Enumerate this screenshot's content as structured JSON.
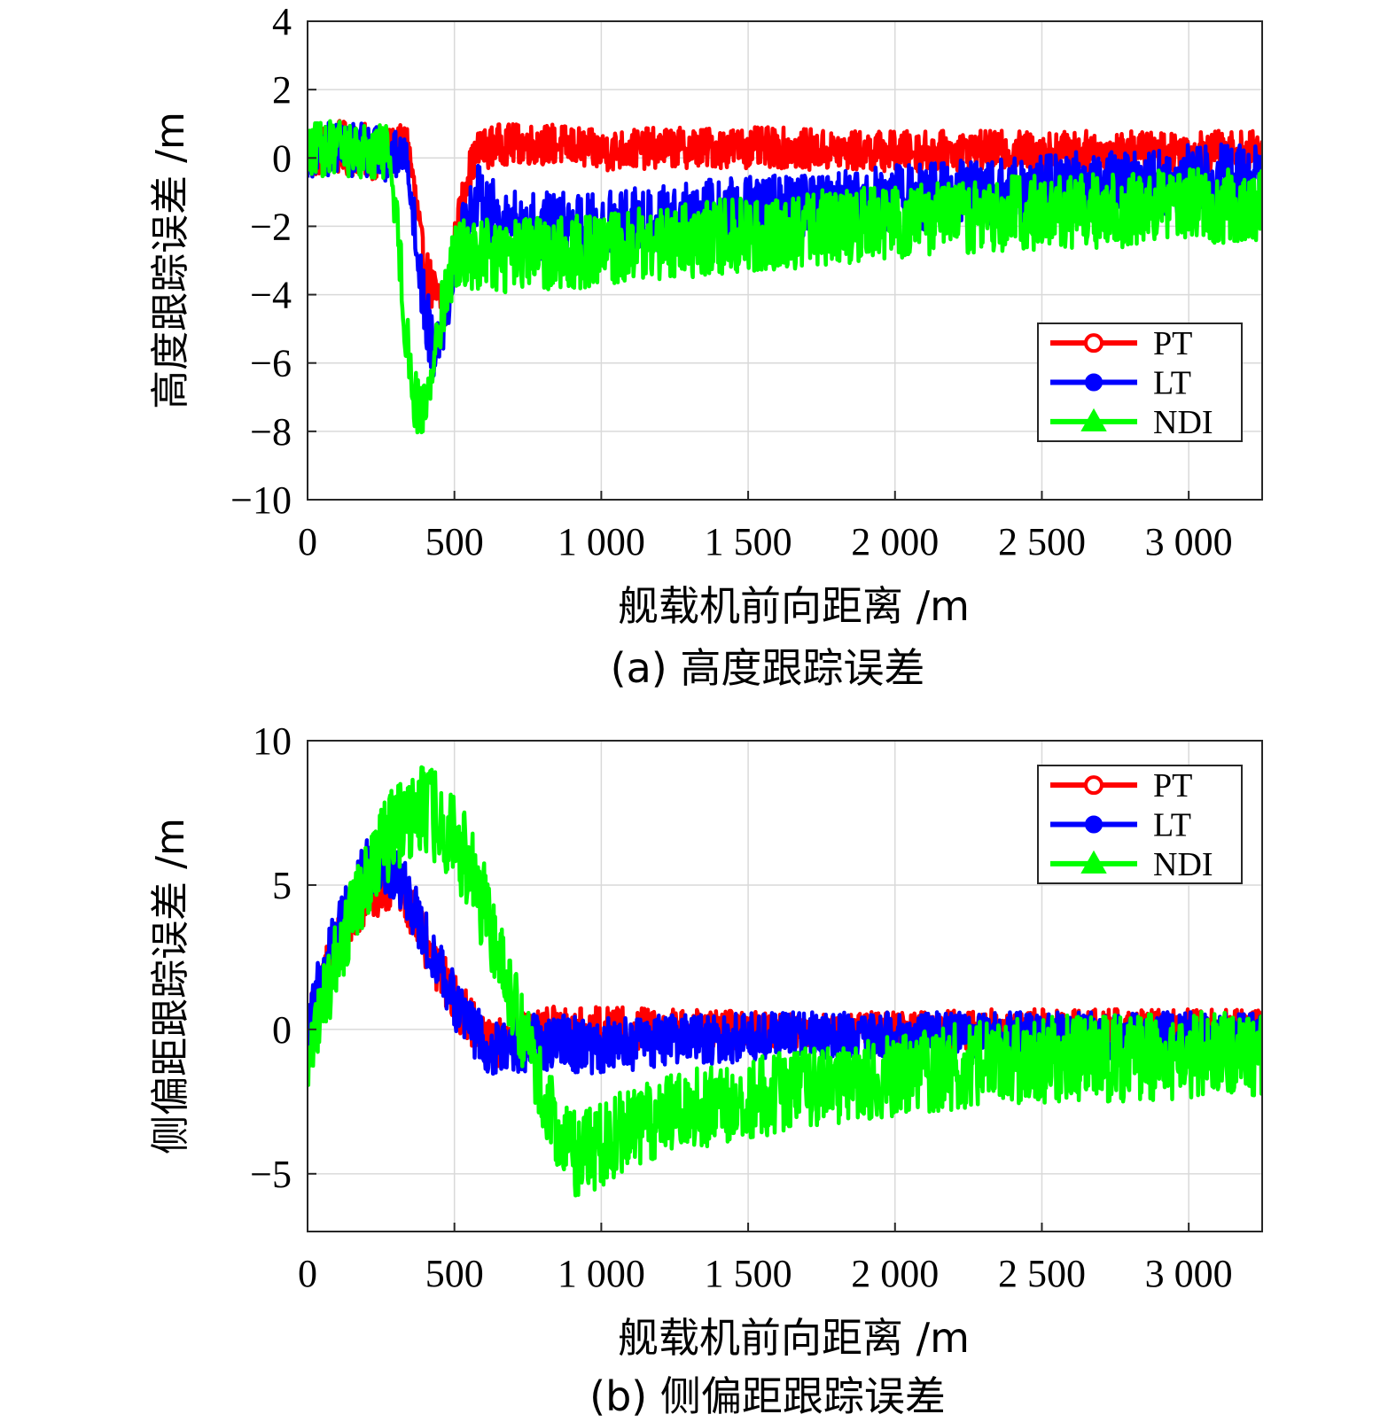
{
  "colors": {
    "PT": "#ff0000",
    "LT": "#0000ff",
    "NDI": "#00ff00",
    "grid": "#d9d9d9",
    "axis": "#262626"
  },
  "chart_data": [
    {
      "type": "line",
      "caption": "(a) 高度跟踪误差",
      "xlabel": "舰载机前向距离  /m",
      "ylabel": "高度跟踪误差  /m",
      "xlim": [
        0,
        3250
      ],
      "ylim": [
        -10,
        4
      ],
      "xticks": [
        0,
        500,
        1000,
        1500,
        2000,
        2500,
        3000
      ],
      "xtick_labels": [
        "0",
        "500",
        "1 000",
        "1 500",
        "2 000",
        "2 500",
        "3 000"
      ],
      "yticks": [
        4,
        2,
        0,
        -2,
        -4,
        -6,
        -8,
        -10
      ],
      "ytick_labels": [
        "4",
        "2",
        "0",
        "−2",
        "−4",
        "−6",
        "−8",
        "−10"
      ],
      "grid": true,
      "legend_position": "right",
      "series": [
        {
          "name": "PT",
          "marker": "circle-open",
          "x": [
            0,
            100,
            200,
            280,
            340,
            365,
            395,
            430,
            470,
            500,
            540,
            580,
            650,
            750,
            850,
            1000,
            1200,
            1400,
            1600,
            1800,
            2000,
            2200,
            2400,
            2600,
            2800,
            3000,
            3250
          ],
          "y": [
            0.2,
            0.3,
            0.2,
            0.1,
            0.5,
            -1.0,
            -3.2,
            -4.0,
            -4.5,
            -2.5,
            -0.6,
            0.2,
            0.4,
            0.4,
            0.4,
            0.2,
            0.3,
            0.3,
            0.3,
            0.2,
            0.2,
            0.2,
            0.2,
            0.2,
            0.2,
            0.2,
            0.2
          ],
          "noise": [
            0.8,
            0.8,
            0.8,
            0.8,
            0.5,
            0.6,
            0.8,
            0.8,
            0.8,
            0.6,
            0.6,
            0.6,
            0.6,
            0.6,
            0.6,
            0.6,
            0.6,
            0.6,
            0.6,
            0.6,
            0.6,
            0.6,
            0.6,
            0.6,
            0.6,
            0.6,
            0.6
          ]
        },
        {
          "name": "LT",
          "marker": "circle-filled",
          "x": [
            0,
            100,
            200,
            280,
            340,
            370,
            400,
            430,
            470,
            500,
            540,
            580,
            650,
            750,
            850,
            1000,
            1200,
            1400,
            1600,
            1800,
            2000,
            2200,
            2400,
            2600,
            2800,
            3000,
            3250
          ],
          "y": [
            0.2,
            0.3,
            0.2,
            0.1,
            0.0,
            -2.5,
            -4.5,
            -5.5,
            -4.5,
            -3.0,
            -1.8,
            -1.2,
            -1.8,
            -2.0,
            -2.0,
            -2.0,
            -1.8,
            -1.6,
            -1.5,
            -1.4,
            -1.2,
            -1.0,
            -1.0,
            -0.8,
            -0.8,
            -0.6,
            -0.6
          ],
          "noise": [
            0.8,
            0.8,
            0.8,
            0.8,
            0.5,
            0.8,
            1.0,
            1.0,
            0.9,
            0.8,
            0.9,
            1.0,
            1.0,
            1.0,
            1.0,
            1.0,
            1.0,
            1.0,
            1.0,
            1.0,
            1.0,
            1.0,
            1.0,
            1.0,
            1.0,
            1.0,
            1.0
          ]
        },
        {
          "name": "NDI",
          "marker": "triangle",
          "x": [
            0,
            100,
            200,
            280,
            300,
            330,
            360,
            390,
            420,
            450,
            480,
            510,
            550,
            600,
            700,
            800,
            1000,
            1200,
            1400,
            1600,
            1800,
            2000,
            2200,
            2400,
            2600,
            2800,
            3000,
            3250
          ],
          "y": [
            0.2,
            0.3,
            0.2,
            0.2,
            -1.5,
            -4.5,
            -7.0,
            -7.5,
            -6.5,
            -4.8,
            -3.5,
            -2.8,
            -2.8,
            -2.9,
            -2.9,
            -2.8,
            -2.7,
            -2.5,
            -2.3,
            -2.2,
            -2.0,
            -1.9,
            -1.8,
            -1.6,
            -1.6,
            -1.5,
            -1.4,
            -1.4
          ],
          "noise": [
            0.8,
            0.8,
            0.8,
            0.8,
            0.8,
            1.0,
            0.9,
            0.9,
            0.9,
            0.9,
            0.9,
            1.0,
            1.0,
            1.1,
            1.1,
            1.1,
            1.1,
            1.1,
            1.1,
            1.1,
            1.1,
            1.1,
            1.1,
            1.1,
            1.1,
            1.1,
            1.1,
            1.1
          ]
        }
      ]
    },
    {
      "type": "line",
      "caption": "(b) 侧偏距跟踪误差",
      "xlabel": "舰载机前向距离  /m",
      "ylabel": "侧偏距跟踪误差  /m",
      "xlim": [
        0,
        3250
      ],
      "ylim": [
        -7,
        10
      ],
      "xticks": [
        0,
        500,
        1000,
        1500,
        2000,
        2500,
        3000
      ],
      "xtick_labels": [
        "0",
        "500",
        "1 000",
        "1 500",
        "2 000",
        "2 500",
        "3 000"
      ],
      "yticks": [
        10,
        5,
        0,
        -5
      ],
      "ytick_labels": [
        "10",
        "5",
        "0",
        "−5"
      ],
      "grid": true,
      "legend_position": "top-right",
      "series": [
        {
          "name": "PT",
          "marker": "circle-open",
          "x": [
            0,
            50,
            100,
            150,
            200,
            250,
            300,
            350,
            400,
            450,
            500,
            550,
            600,
            650,
            700,
            800,
            1000,
            1200,
            1400,
            1600,
            1800,
            2000,
            2200,
            2400,
            2600,
            2800,
            3000,
            3250
          ],
          "y": [
            0,
            1.5,
            2.8,
            3.8,
            4.5,
            5.0,
            5.2,
            4.2,
            3.0,
            2.0,
            1.0,
            0.3,
            -0.3,
            -0.5,
            -0.3,
            0.0,
            0.0,
            0.0,
            0.0,
            0.0,
            0.0,
            0.0,
            0.0,
            0.0,
            0.0,
            0.0,
            0.0,
            0.0
          ],
          "noise": [
            1.0,
            1.0,
            1.0,
            1.0,
            1.0,
            1.0,
            0.9,
            0.9,
            0.9,
            0.9,
            0.9,
            0.9,
            0.9,
            0.9,
            0.8,
            0.8,
            0.8,
            0.7,
            0.7,
            0.6,
            0.6,
            0.6,
            0.7,
            0.7,
            0.7,
            0.7,
            0.7,
            0.7
          ]
        },
        {
          "name": "LT",
          "marker": "circle-filled",
          "x": [
            0,
            50,
            100,
            150,
            200,
            250,
            300,
            350,
            400,
            450,
            500,
            550,
            600,
            650,
            700,
            800,
            1000,
            1200,
            1400,
            1600,
            1800,
            2000,
            2200,
            2400,
            2600,
            2800,
            3000,
            3250
          ],
          "y": [
            0,
            1.8,
            3.2,
            4.5,
            5.5,
            5.8,
            5.5,
            4.5,
            3.2,
            2.0,
            1.0,
            0.2,
            -0.5,
            -0.8,
            -0.6,
            -0.4,
            -0.6,
            -0.4,
            -0.3,
            -0.2,
            -0.2,
            -0.2,
            -0.2,
            -0.2,
            -0.2,
            -0.2,
            -0.2,
            -0.2
          ],
          "noise": [
            1.1,
            1.1,
            1.1,
            1.1,
            1.1,
            1.1,
            1.0,
            1.0,
            1.0,
            1.0,
            1.0,
            1.0,
            1.0,
            1.0,
            1.0,
            1.0,
            1.0,
            0.9,
            0.9,
            0.8,
            0.8,
            0.8,
            0.8,
            0.8,
            0.8,
            0.8,
            0.8,
            0.8
          ]
        },
        {
          "name": "NDI",
          "marker": "triangle",
          "x": [
            0,
            50,
            100,
            150,
            200,
            250,
            300,
            350,
            400,
            450,
            500,
            550,
            600,
            650,
            700,
            750,
            800,
            850,
            900,
            1000,
            1100,
            1200,
            1400,
            1600,
            1800,
            2000,
            2200,
            2400,
            2600,
            2800,
            3000,
            3250
          ],
          "y": [
            -1.0,
            0.8,
            2.5,
            4.0,
            5.2,
            6.2,
            7.0,
            7.5,
            7.6,
            7.3,
            6.6,
            5.6,
            4.2,
            2.6,
            1.0,
            -0.6,
            -2.2,
            -3.5,
            -4.3,
            -4.0,
            -3.4,
            -3.0,
            -2.6,
            -2.2,
            -1.9,
            -1.6,
            -1.3,
            -1.1,
            -1.0,
            -1.0,
            -0.9,
            -0.8
          ],
          "noise": [
            1.4,
            1.4,
            1.4,
            1.4,
            1.4,
            1.5,
            1.5,
            1.6,
            1.6,
            1.6,
            1.6,
            1.6,
            1.6,
            1.5,
            1.4,
            1.3,
            1.3,
            1.4,
            1.5,
            1.5,
            1.4,
            1.4,
            1.4,
            1.4,
            1.4,
            1.4,
            1.5,
            1.5,
            1.5,
            1.5,
            1.5,
            1.5
          ]
        }
      ]
    }
  ]
}
